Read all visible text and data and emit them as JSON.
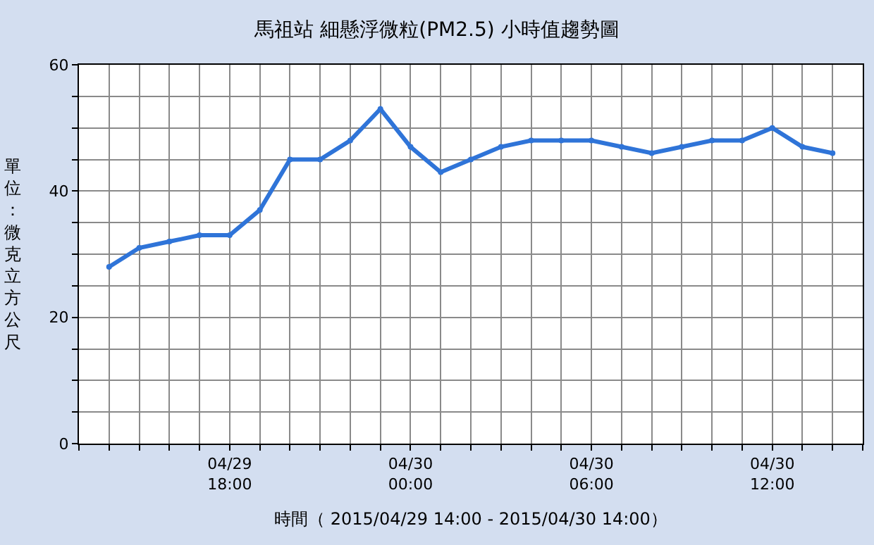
{
  "chart_data": {
    "type": "line",
    "title": "馬祖站 細懸浮微粒(PM2.5) 小時值趨勢圖",
    "xlabel": "時間（ 2015/04/29 14:00 - 2015/04/30 14:00）",
    "ylabel": "單位：微克立方公尺",
    "x": [
      "2015-04-29T14:00",
      "2015-04-29T15:00",
      "2015-04-29T16:00",
      "2015-04-29T17:00",
      "2015-04-29T18:00",
      "2015-04-29T19:00",
      "2015-04-29T20:00",
      "2015-04-29T21:00",
      "2015-04-29T22:00",
      "2015-04-29T23:00",
      "2015-04-30T00:00",
      "2015-04-30T01:00",
      "2015-04-30T02:00",
      "2015-04-30T03:00",
      "2015-04-30T04:00",
      "2015-04-30T05:00",
      "2015-04-30T06:00",
      "2015-04-30T07:00",
      "2015-04-30T08:00",
      "2015-04-30T09:00",
      "2015-04-30T10:00",
      "2015-04-30T11:00",
      "2015-04-30T12:00",
      "2015-04-30T13:00",
      "2015-04-30T14:00"
    ],
    "series": [
      {
        "color": "#2f74d8",
        "values": [
          28,
          31,
          32,
          33,
          33,
          37,
          45,
          45,
          48,
          53,
          47,
          43,
          45,
          47,
          48,
          48,
          48,
          47,
          46,
          47,
          48,
          48,
          50,
          47,
          46
        ]
      }
    ],
    "xlim": [
      "2015-04-29T13:00",
      "2015-04-30T15:00"
    ],
    "xticks": [
      {
        "value": "2015-04-29T13:00",
        "label": null
      },
      {
        "value": "2015-04-29T14:00",
        "label": null
      },
      {
        "value": "2015-04-29T15:00",
        "label": null
      },
      {
        "value": "2015-04-29T16:00",
        "label": null
      },
      {
        "value": "2015-04-29T17:00",
        "label": null
      },
      {
        "value": "2015-04-29T18:00",
        "label": "04/29\n18:00"
      },
      {
        "value": "2015-04-29T19:00",
        "label": null
      },
      {
        "value": "2015-04-29T20:00",
        "label": null
      },
      {
        "value": "2015-04-29T21:00",
        "label": null
      },
      {
        "value": "2015-04-29T22:00",
        "label": null
      },
      {
        "value": "2015-04-29T23:00",
        "label": null
      },
      {
        "value": "2015-04-30T00:00",
        "label": "04/30\n00:00"
      },
      {
        "value": "2015-04-30T01:00",
        "label": null
      },
      {
        "value": "2015-04-30T02:00",
        "label": null
      },
      {
        "value": "2015-04-30T03:00",
        "label": null
      },
      {
        "value": "2015-04-30T04:00",
        "label": null
      },
      {
        "value": "2015-04-30T05:00",
        "label": null
      },
      {
        "value": "2015-04-30T06:00",
        "label": "04/30\n06:00"
      },
      {
        "value": "2015-04-30T07:00",
        "label": null
      },
      {
        "value": "2015-04-30T08:00",
        "label": null
      },
      {
        "value": "2015-04-30T09:00",
        "label": null
      },
      {
        "value": "2015-04-30T10:00",
        "label": null
      },
      {
        "value": "2015-04-30T11:00",
        "label": null
      },
      {
        "value": "2015-04-30T12:00",
        "label": "04/30\n12:00"
      },
      {
        "value": "2015-04-30T13:00",
        "label": null
      },
      {
        "value": "2015-04-30T14:00",
        "label": null
      },
      {
        "value": "2015-04-30T15:00",
        "label": null
      }
    ],
    "ylim": [
      0,
      60
    ],
    "yticks": [
      0,
      {
        "value": 5,
        "label": null
      },
      {
        "value": 10,
        "label": null
      },
      {
        "value": 15,
        "label": null
      },
      20,
      {
        "value": 25,
        "label": null
      },
      {
        "value": 30,
        "label": null
      },
      {
        "value": 35,
        "label": null
      },
      40,
      {
        "value": 45,
        "label": null
      },
      {
        "value": 50,
        "label": null
      },
      {
        "value": 55,
        "label": null
      },
      60
    ],
    "grid": true,
    "marker": "circle",
    "line_style": "solid"
  }
}
